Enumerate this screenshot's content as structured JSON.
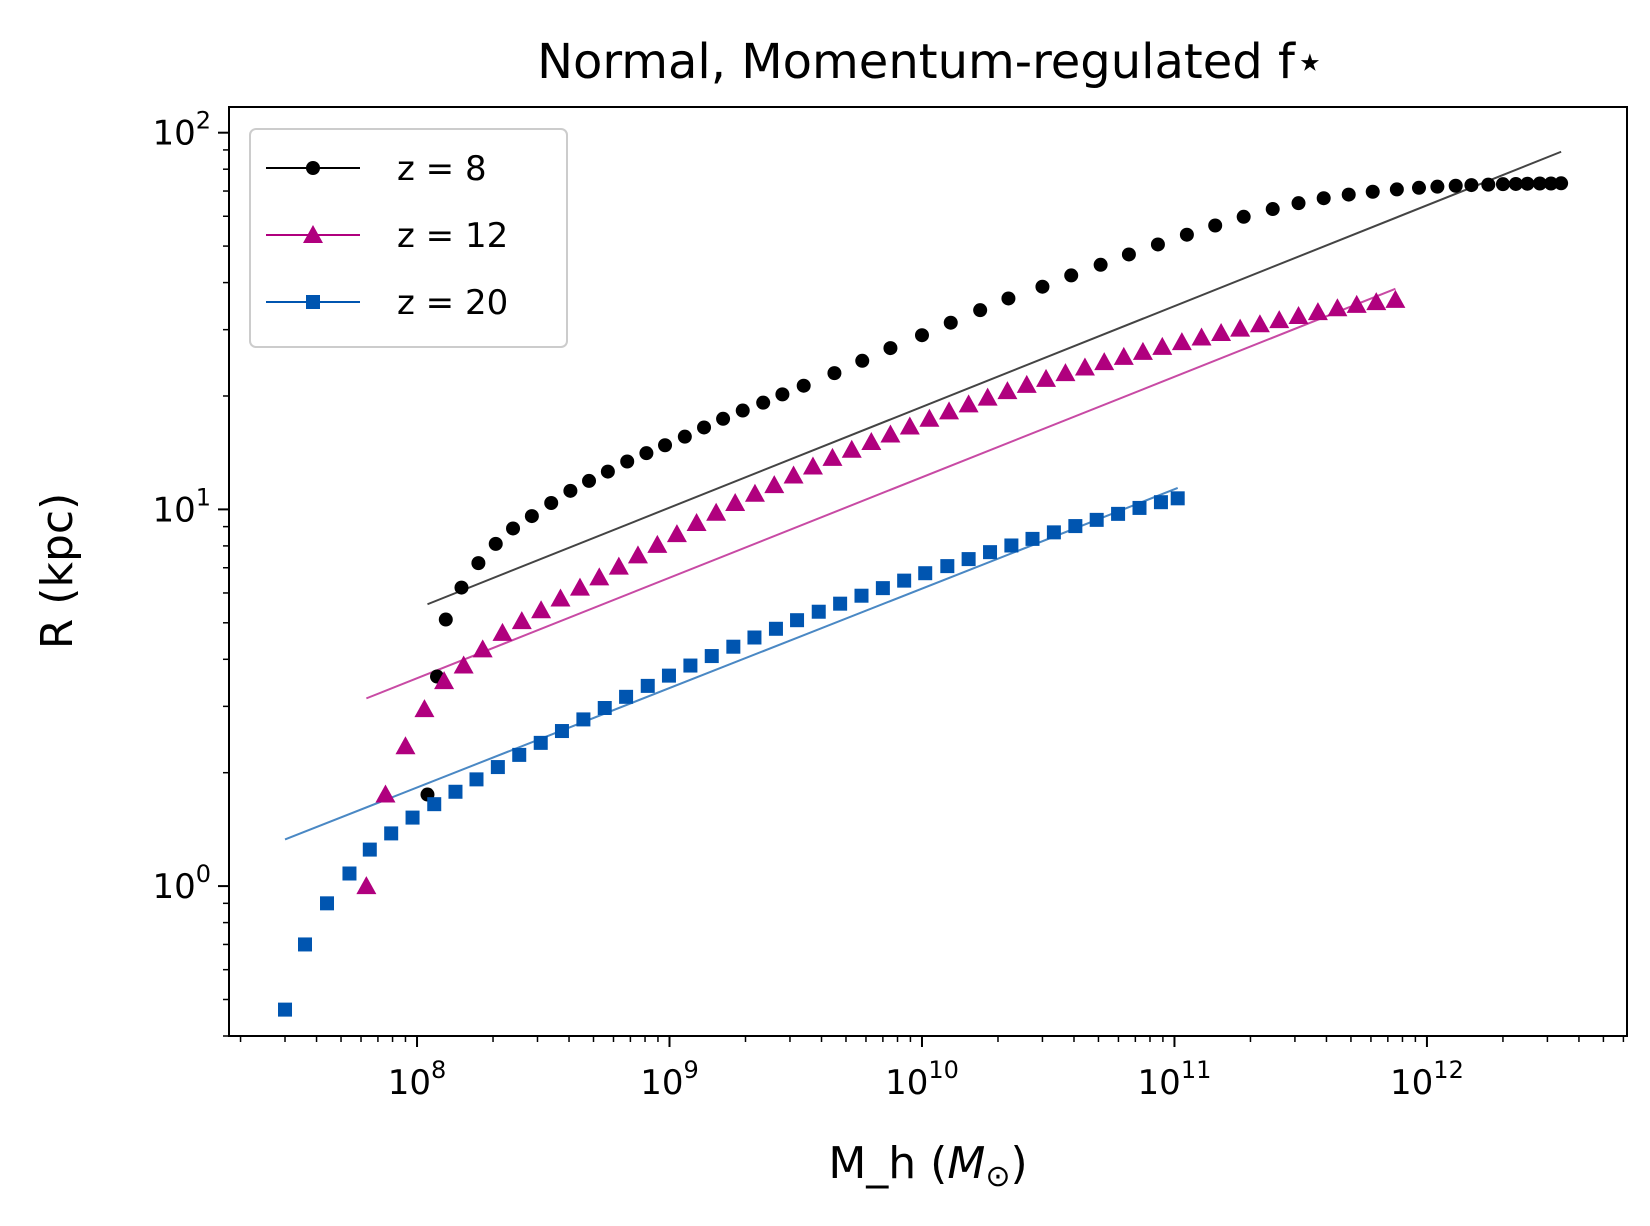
{
  "chart_data": {
    "type": "scatter",
    "title": "Normal, Momentum-regulated f⋆",
    "xlabel": "M_h (",
    "xlabel_symbol": "M",
    "xlabel_subscript": "⊙",
    "xlabel_close": ")",
    "ylabel": "R (kpc)",
    "xscale": "log",
    "yscale": "log",
    "xlim": [
      18000000.0,
      6200000000000.0
    ],
    "ylim": [
      0.4,
      117
    ],
    "legend_position": "upper-left",
    "x_ticks": [
      {
        "value": 100000000.0,
        "base": "10",
        "exp": "8"
      },
      {
        "value": 1000000000.0,
        "base": "10",
        "exp": "9"
      },
      {
        "value": 10000000000.0,
        "base": "10",
        "exp": "10"
      },
      {
        "value": 100000000000.0,
        "base": "10",
        "exp": "11"
      },
      {
        "value": 1000000000000.0,
        "base": "10",
        "exp": "12"
      }
    ],
    "y_ticks": [
      {
        "value": 1,
        "base": "10",
        "exp": "0"
      },
      {
        "value": 10,
        "base": "10",
        "exp": "1"
      },
      {
        "value": 100,
        "base": "10",
        "exp": "2"
      }
    ],
    "series": [
      {
        "name": "z = 8",
        "color": "#000000",
        "fit_color": "#444444",
        "marker": "circle",
        "x": [
          110000000.0,
          120000000.0,
          130000000.0,
          150000000.0,
          175000000.0,
          205000000.0,
          240000000.0,
          285000000.0,
          340000000.0,
          405000000.0,
          480000000.0,
          570000000.0,
          680000000.0,
          810000000.0,
          960000000.0,
          1150000000.0,
          1370000000.0,
          1630000000.0,
          1950000000.0,
          2350000000.0,
          2800000000.0,
          3400000000.0,
          4500000000.0,
          5800000000.0,
          7500000000.0,
          10000000000.0,
          13000000000.0,
          17000000000.0,
          22000000000.0,
          30000000000.0,
          39000000000.0,
          51000000000.0,
          66000000000.0,
          86000000000.0,
          112000000000.0,
          145000000000.0,
          188000000000.0,
          245000000000.0,
          310000000000.0,
          390000000000.0,
          490000000000.0,
          610000000000.0,
          760000000000.0,
          930000000000.0,
          1100000000000.0,
          1300000000000.0,
          1500000000000.0,
          1750000000000.0,
          2000000000000.0,
          2250000000000.0,
          2500000000000.0,
          2800000000000.0,
          3100000000000.0,
          3400000000000.0
        ],
        "y": [
          1.75,
          3.6,
          5.1,
          6.2,
          7.2,
          8.1,
          8.9,
          9.6,
          10.4,
          11.2,
          11.9,
          12.6,
          13.4,
          14.1,
          14.8,
          15.6,
          16.5,
          17.4,
          18.3,
          19.2,
          20.2,
          21.3,
          23.0,
          24.8,
          26.8,
          29.0,
          31.3,
          33.8,
          36.3,
          39.0,
          41.8,
          44.6,
          47.5,
          50.5,
          53.6,
          56.7,
          59.8,
          62.7,
          65.0,
          67.0,
          68.5,
          69.7,
          70.7,
          71.4,
          71.9,
          72.3,
          72.6,
          72.8,
          73.0,
          73.1,
          73.2,
          73.3,
          73.3,
          73.4
        ],
        "fit": {
          "x": [
            110000000.0,
            3400000000000.0
          ],
          "y": [
            5.6,
            89
          ]
        }
      },
      {
        "name": "z = 12",
        "color": "#b0007e",
        "fit_color": "#c84aa4",
        "marker": "triangle",
        "x": [
          63000000.0,
          75000000.0,
          90000000.0,
          107000000.0,
          128000000.0,
          153000000.0,
          182000000.0,
          218000000.0,
          260000000.0,
          310000000.0,
          370000000.0,
          442000000.0,
          527000000.0,
          630000000.0,
          750000000.0,
          895000000.0,
          1070000000.0,
          1280000000.0,
          1530000000.0,
          1820000000.0,
          2180000000.0,
          2600000000.0,
          3100000000.0,
          3700000000.0,
          4420000000.0,
          5270000000.0,
          6300000000.0,
          7500000000.0,
          8950000000.0,
          10700000000.0,
          12800000000.0,
          15300000000.0,
          18200000000.0,
          21800000000.0,
          26000000000.0,
          31000000000.0,
          37000000000.0,
          44200000000.0,
          52700000000.0,
          63000000000.0,
          75000000000.0,
          89500000000.0,
          107000000000.0,
          128000000000.0,
          153000000000.0,
          182000000000.0,
          218000000000.0,
          260000000000.0,
          310000000000.0,
          370000000000.0,
          442000000000.0,
          527000000000.0,
          630000000000.0,
          750000000000.0
        ],
        "y": [
          1.0,
          1.75,
          2.35,
          2.95,
          3.5,
          3.85,
          4.25,
          4.7,
          5.05,
          5.4,
          5.8,
          6.2,
          6.6,
          7.05,
          7.55,
          8.05,
          8.6,
          9.2,
          9.8,
          10.4,
          11.0,
          11.6,
          12.3,
          13.0,
          13.7,
          14.4,
          15.1,
          15.8,
          16.6,
          17.4,
          18.2,
          19.0,
          19.8,
          20.6,
          21.4,
          22.2,
          23.0,
          23.8,
          24.6,
          25.4,
          26.2,
          27.0,
          27.8,
          28.6,
          29.4,
          30.2,
          31.0,
          31.8,
          32.6,
          33.4,
          34.2,
          34.9,
          35.5,
          36.0
        ],
        "fit": {
          "x": [
            63000000.0,
            750000000000.0
          ],
          "y": [
            3.15,
            38.5
          ]
        }
      },
      {
        "name": "z = 20",
        "color": "#0055b0",
        "fit_color": "#4a88c4",
        "marker": "square",
        "x": [
          30000000.0,
          36000000.0,
          44000000.0,
          54000000.0,
          65000000.0,
          79000000.0,
          96000000.0,
          117000000.0,
          142000000.0,
          172000000.0,
          209000000.0,
          254000000.0,
          309000000.0,
          375000000.0,
          456000000.0,
          554000000.0,
          673000000.0,
          820000000.0,
          995000000.0,
          1210000000.0,
          1470000000.0,
          1790000000.0,
          2170000000.0,
          2640000000.0,
          3200000000.0,
          3900000000.0,
          4740000000.0,
          5760000000.0,
          7000000000.0,
          8500000000.0,
          10300000000.0,
          12600000000.0,
          15300000000.0,
          18600000000.0,
          22600000000.0,
          27400000000.0,
          33300000000.0,
          40500000000.0,
          49200000000.0,
          59800000000.0,
          72700000000.0,
          88400000000.0,
          103000000000.0
        ],
        "y": [
          0.47,
          0.7,
          0.9,
          1.08,
          1.25,
          1.38,
          1.52,
          1.65,
          1.78,
          1.92,
          2.07,
          2.23,
          2.4,
          2.58,
          2.77,
          2.97,
          3.18,
          3.4,
          3.62,
          3.85,
          4.08,
          4.32,
          4.57,
          4.82,
          5.08,
          5.35,
          5.62,
          5.9,
          6.18,
          6.47,
          6.77,
          7.07,
          7.38,
          7.7,
          8.02,
          8.35,
          8.69,
          9.03,
          9.38,
          9.73,
          10.09,
          10.45,
          10.7
        ],
        "fit": {
          "x": [
            30000000.0,
            103000000000.0
          ],
          "y": [
            1.33,
            11.4
          ]
        }
      }
    ]
  }
}
